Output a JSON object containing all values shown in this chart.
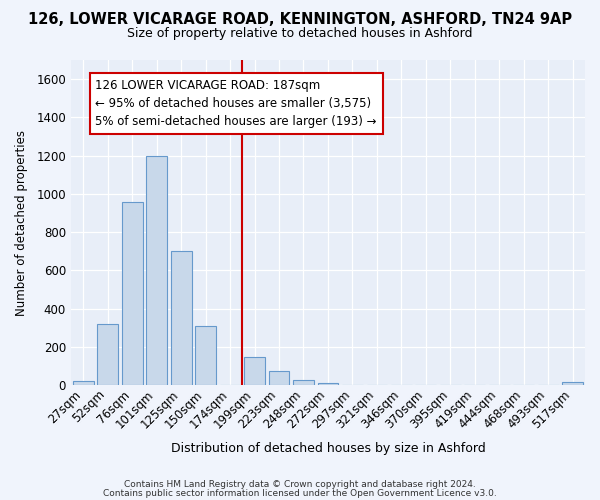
{
  "title_line1": "126, LOWER VICARAGE ROAD, KENNINGTON, ASHFORD, TN24 9AP",
  "title_line2": "Size of property relative to detached houses in Ashford",
  "xlabel": "Distribution of detached houses by size in Ashford",
  "ylabel": "Number of detached properties",
  "footer_line1": "Contains HM Land Registry data © Crown copyright and database right 2024.",
  "footer_line2": "Contains public sector information licensed under the Open Government Licence v3.0.",
  "annotation_line1": "126 LOWER VICARAGE ROAD: 187sqm",
  "annotation_line2": "← 95% of detached houses are smaller (3,575)",
  "annotation_line3": "5% of semi-detached houses are larger (193) →",
  "bar_color": "#c8d8ea",
  "bar_edge_color": "#6699cc",
  "vline_color": "#cc0000",
  "annotation_box_edge": "#cc0000",
  "annotation_box_fill": "#ffffff",
  "background_color": "#e8eef8",
  "fig_background": "#f0f4fc",
  "ylim": [
    0,
    1700
  ],
  "yticks": [
    0,
    200,
    400,
    600,
    800,
    1000,
    1200,
    1400,
    1600
  ],
  "categories": [
    "27sqm",
    "52sqm",
    "76sqm",
    "101sqm",
    "125sqm",
    "150sqm",
    "174sqm",
    "199sqm",
    "223sqm",
    "248sqm",
    "272sqm",
    "297sqm",
    "321sqm",
    "346sqm",
    "370sqm",
    "395sqm",
    "419sqm",
    "444sqm",
    "468sqm",
    "493sqm",
    "517sqm"
  ],
  "values": [
    20,
    320,
    960,
    1200,
    700,
    310,
    0,
    150,
    75,
    30,
    10,
    3,
    2,
    1,
    1,
    1,
    0,
    0,
    0,
    0,
    15
  ],
  "vline_index": 7,
  "title_fontsize": 10.5,
  "subtitle_fontsize": 9.0,
  "ylabel_fontsize": 8.5,
  "xlabel_fontsize": 9.0,
  "tick_fontsize": 8.5,
  "annotation_fontsize": 8.5,
  "footer_fontsize": 6.5
}
